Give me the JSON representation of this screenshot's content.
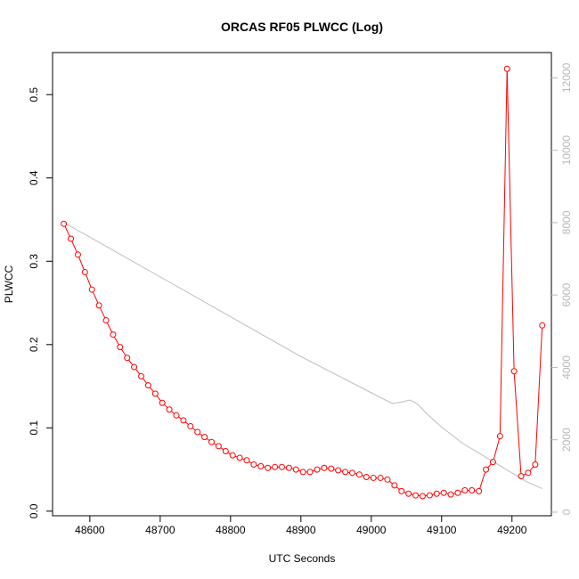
{
  "chart_data": {
    "type": "line",
    "title": "ORCAS RF05 PLWCC (Log)",
    "xlabel": "UTC Seconds",
    "ylabel": "PLWCC",
    "y2label": "",
    "xlim": [
      48547,
      49256
    ],
    "ylim": [
      -0.0055,
      0.5505
    ],
    "y2lim": [
      -100,
      12700
    ],
    "x_ticks": [
      48600,
      48700,
      48800,
      48900,
      49000,
      49100,
      49200
    ],
    "x_tick_labels": [
      "48600",
      "48700",
      "48800",
      "48900",
      "49000",
      "49100",
      "49200"
    ],
    "y_ticks": [
      0.0,
      0.1,
      0.2,
      0.3,
      0.4,
      0.5
    ],
    "y_tick_labels": [
      "0.0",
      "0.1",
      "0.2",
      "0.3",
      "0.4",
      "0.5"
    ],
    "y2_ticks": [
      0,
      2000,
      4000,
      6000,
      8000,
      10000,
      12000
    ],
    "y2_tick_labels": [
      "0",
      "2000",
      "4000",
      "6000",
      "8000",
      "10000",
      "12000"
    ],
    "grid": false,
    "colors": {
      "series_plwcc": "#ff0000",
      "series_right": "#bebebe",
      "right_axis_text": "#b8b8b8"
    },
    "series": [
      {
        "axis": "left",
        "marker": "open-circle",
        "x": [
          48563,
          48573,
          48583,
          48593,
          48603,
          48613,
          48623,
          48633,
          48643,
          48653,
          48663,
          48673,
          48683,
          48693,
          48703,
          48713,
          48723,
          48733,
          48743,
          48753,
          48763,
          48773,
          48783,
          48793,
          48803,
          48813,
          48823,
          48833,
          48843,
          48853,
          48863,
          48873,
          48883,
          48893,
          48903,
          48913,
          48923,
          48933,
          48943,
          48953,
          48963,
          48973,
          48983,
          48993,
          49003,
          49013,
          49023,
          49033,
          49043,
          49053,
          49063,
          49073,
          49083,
          49093,
          49103,
          49113,
          49123,
          49133,
          49143,
          49153,
          49163,
          49173,
          49183,
          49193,
          49203,
          49213,
          49223,
          49233,
          49243
        ],
        "y": [
          0.345,
          0.327,
          0.308,
          0.287,
          0.266,
          0.247,
          0.229,
          0.212,
          0.197,
          0.184,
          0.173,
          0.162,
          0.151,
          0.141,
          0.13,
          0.122,
          0.115,
          0.109,
          0.102,
          0.095,
          0.089,
          0.083,
          0.078,
          0.072,
          0.067,
          0.064,
          0.061,
          0.056,
          0.054,
          0.052,
          0.053,
          0.053,
          0.052,
          0.05,
          0.047,
          0.047,
          0.05,
          0.052,
          0.051,
          0.049,
          0.047,
          0.046,
          0.044,
          0.041,
          0.04,
          0.04,
          0.038,
          0.031,
          0.024,
          0.021,
          0.019,
          0.018,
          0.019,
          0.021,
          0.022,
          0.02,
          0.022,
          0.025,
          0.025,
          0.024,
          0.05,
          0.059,
          0.09,
          0.531,
          0.168,
          0.042,
          0.046,
          0.056,
          0.223
        ]
      },
      {
        "axis": "right",
        "marker": "none",
        "x": [
          48563,
          48600,
          48650,
          48700,
          48750,
          48800,
          48850,
          48900,
          48950,
          49000,
          49030,
          49045,
          49055,
          49065,
          49080,
          49100,
          49130,
          49160,
          49190,
          49220,
          49243
        ],
        "y": [
          8000,
          7600,
          7050,
          6500,
          5950,
          5400,
          4850,
          4300,
          3800,
          3300,
          3000,
          3050,
          3100,
          3000,
          2700,
          2350,
          1900,
          1550,
          1200,
          850,
          650
        ]
      }
    ]
  }
}
